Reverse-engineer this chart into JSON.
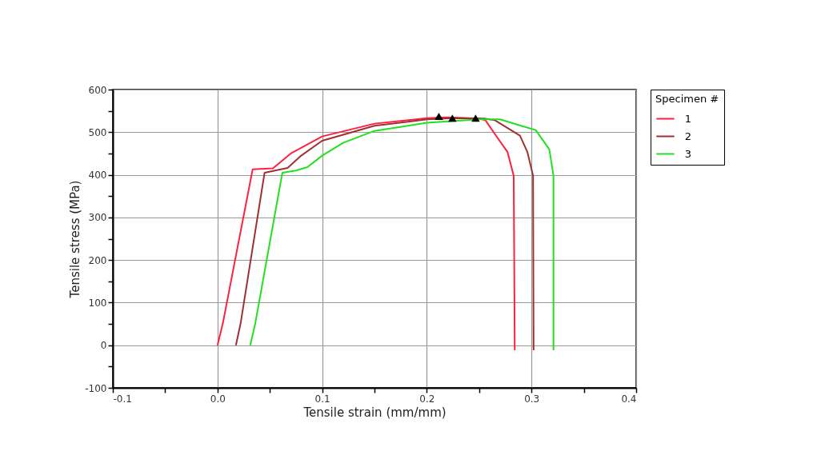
{
  "chart_data": {
    "type": "line",
    "xlabel": "Tensile strain (mm/mm)",
    "ylabel": "Tensile stress (MPa)",
    "legend_title": "Specimen #",
    "legend": "right",
    "grid": true,
    "line_style": "solid",
    "xlim": [
      -0.1,
      0.4
    ],
    "ylim": [
      -100,
      600
    ],
    "xticks": [
      -0.1,
      {
        "value": -0.05,
        "label": null
      },
      {
        "value": 0,
        "label": "0.0"
      },
      {
        "value": 0.05,
        "label": null
      },
      0.1,
      {
        "value": 0.15,
        "label": null
      },
      0.2,
      {
        "value": 0.25,
        "label": null
      },
      0.3,
      {
        "value": 0.35,
        "label": null
      },
      0.4
    ],
    "yticks": [
      -100,
      {
        "value": -50,
        "label": null
      },
      0,
      {
        "value": 50,
        "label": null
      },
      100,
      {
        "value": 150,
        "label": null
      },
      200,
      {
        "value": 250,
        "label": null
      },
      300,
      {
        "value": 350,
        "label": null
      },
      400,
      {
        "value": 450,
        "label": null
      },
      500,
      {
        "value": 550,
        "label": null
      },
      600
    ],
    "series": [
      {
        "name": "1",
        "color": "#ff2040",
        "x": [
          0,
          0.005,
          0.0336,
          0.053,
          0.07,
          0.1,
          0.15,
          0.2,
          0.22,
          0.25,
          0.256,
          0.266,
          0.277,
          0.283,
          0.284
        ],
        "values": [
          0,
          50,
          413,
          415,
          450,
          490,
          520,
          533,
          535,
          532,
          528,
          492,
          454,
          398,
          -12
        ]
      },
      {
        "name": "2",
        "color": "#a03030",
        "x": [
          0.0176,
          0.022,
          0.045,
          0.067,
          0.08,
          0.1,
          0.15,
          0.2,
          0.225,
          0.255,
          0.265,
          0.289,
          0.296,
          0.3015,
          0.302
        ],
        "values": [
          0,
          50,
          405,
          416,
          445,
          480,
          515,
          530,
          533,
          532,
          528,
          492,
          454,
          398,
          -12
        ]
      },
      {
        "name": "3",
        "color": "#20e020",
        "x": [
          0.0313,
          0.036,
          0.062,
          0.075,
          0.086,
          0.1,
          0.12,
          0.15,
          0.2,
          0.25,
          0.27,
          0.29,
          0.304,
          0.317,
          0.321,
          0.321
        ],
        "values": [
          0,
          50,
          405,
          410,
          418,
          445,
          475,
          503,
          522,
          530,
          530,
          515,
          505,
          460,
          398,
          -12
        ]
      },
      {
        "type": "scatter",
        "marker": "triangle",
        "color": "#000000",
        "x": [
          0.2115,
          0.2244,
          0.2466
        ],
        "values": [
          537,
          533,
          533
        ]
      }
    ]
  }
}
